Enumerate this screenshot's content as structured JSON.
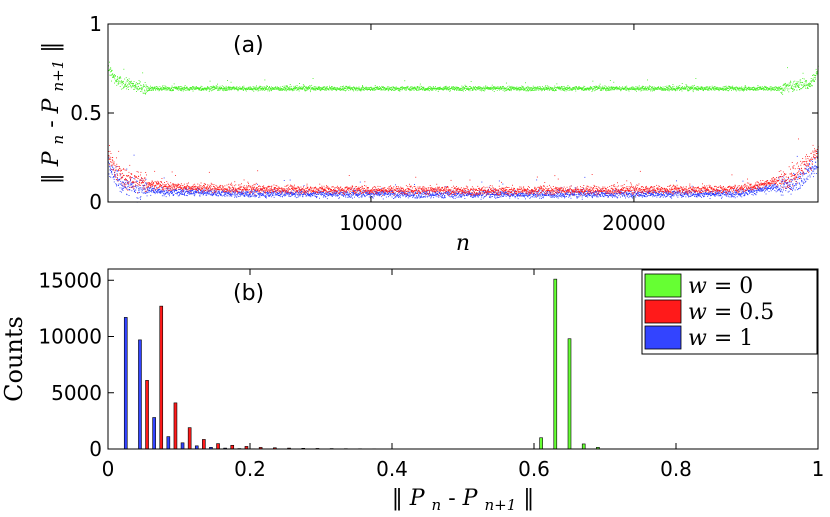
{
  "chart_data": [
    {
      "type": "scatter",
      "panel_label": "(a)",
      "xlabel": "n",
      "ylabel": {
        "pre": "‖ ",
        "p1": "P",
        "s1": "n",
        "mid": "-",
        "p2": "P",
        "s2": "n+1",
        "post": " ‖"
      },
      "xlim": [
        0,
        27000
      ],
      "ylim": [
        0,
        1
      ],
      "xticks": [
        10000,
        20000
      ],
      "xtick_labels": [
        "10000",
        "20000"
      ],
      "yticks": [
        0,
        0.5,
        1
      ],
      "ytick_labels": [
        "0",
        "0.5",
        "1"
      ],
      "grid": false,
      "series": [
        {
          "name": "w = 1",
          "color": "#2233ff",
          "n_points": 27000,
          "profile": {
            "x": [
              0,
              500,
              2000,
              5000,
              15000,
              24000,
              26000,
              27000
            ],
            "y": [
              0.2,
              0.1,
              0.06,
              0.05,
              0.045,
              0.05,
              0.1,
              0.22
            ]
          },
          "spread": 0.02
        },
        {
          "name": "w = 0.5",
          "color": "#ff1a1a",
          "n_points": 27000,
          "profile": {
            "x": [
              0,
              500,
              2000,
              5000,
              15000,
              24000,
              26000,
              27000
            ],
            "y": [
              0.26,
              0.14,
              0.09,
              0.075,
              0.065,
              0.075,
              0.14,
              0.28
            ]
          },
          "spread": 0.022
        },
        {
          "name": "w = 0",
          "color": "#44ee22",
          "n_points": 27000,
          "profile": {
            "x": [
              0,
              300,
              1500,
              25500,
              26700,
              27000
            ],
            "y": [
              0.75,
              0.68,
              0.64,
              0.64,
              0.67,
              0.74
            ]
          },
          "spread": 0.012
        }
      ]
    },
    {
      "type": "bar",
      "panel_label": "(b)",
      "ylabel": "Counts",
      "xlabel": {
        "pre": "‖ ",
        "p1": "P",
        "s1": "n",
        "mid": "-",
        "p2": "P",
        "s2": "n+1",
        "post": " ‖"
      },
      "xlim": [
        0,
        1
      ],
      "ylim": [
        0,
        16000
      ],
      "xticks": [
        0,
        0.2,
        0.4,
        0.6,
        0.8,
        1
      ],
      "xtick_labels": [
        "0",
        "0.2",
        "0.4",
        "0.6",
        "0.8",
        "1"
      ],
      "yticks": [
        0,
        5000,
        10000,
        15000
      ],
      "ytick_labels": [
        "0",
        "5000",
        "10000",
        "15000"
      ],
      "bin_centers": [
        0.03,
        0.05,
        0.07,
        0.09,
        0.11,
        0.13,
        0.15,
        0.17,
        0.19,
        0.21,
        0.23,
        0.25,
        0.27,
        0.29,
        0.31,
        0.33,
        0.35,
        0.37,
        0.39,
        0.41,
        0.43,
        0.45,
        0.47,
        0.49,
        0.51,
        0.53,
        0.55,
        0.57,
        0.59,
        0.61,
        0.63,
        0.65,
        0.67,
        0.69
      ],
      "legend_position": "top-right",
      "series": [
        {
          "name": "w = 0",
          "label_var": "w",
          "label_val": "0",
          "color": "#66ff33",
          "values": [
            0,
            0,
            0,
            0,
            0,
            0,
            0,
            0,
            0,
            0,
            0,
            0,
            0,
            0,
            0,
            0,
            0,
            0,
            0,
            0,
            0,
            0,
            0,
            0,
            0,
            0,
            0,
            0,
            0,
            1000,
            15100,
            9800,
            450,
            150
          ]
        },
        {
          "name": "w = 0.5",
          "label_var": "w",
          "label_val": "0.5",
          "color": "#ff1a1a",
          "values": [
            0,
            6100,
            12700,
            4100,
            1900,
            850,
            480,
            330,
            230,
            140,
            110,
            80,
            60,
            50,
            40,
            30,
            25,
            20,
            15,
            12,
            10,
            8,
            6,
            5,
            4,
            3,
            3,
            2,
            2,
            0,
            0,
            0,
            0,
            0
          ]
        },
        {
          "name": "w = 1",
          "label_var": "w",
          "label_val": "1",
          "color": "#3344ff",
          "values": [
            11700,
            9700,
            2800,
            1100,
            550,
            280,
            150,
            80,
            40,
            20,
            10,
            5,
            3,
            2,
            0,
            0,
            0,
            0,
            0,
            0,
            0,
            0,
            0,
            0,
            0,
            0,
            0,
            0,
            0,
            0,
            0,
            0,
            0,
            0
          ]
        }
      ]
    }
  ]
}
